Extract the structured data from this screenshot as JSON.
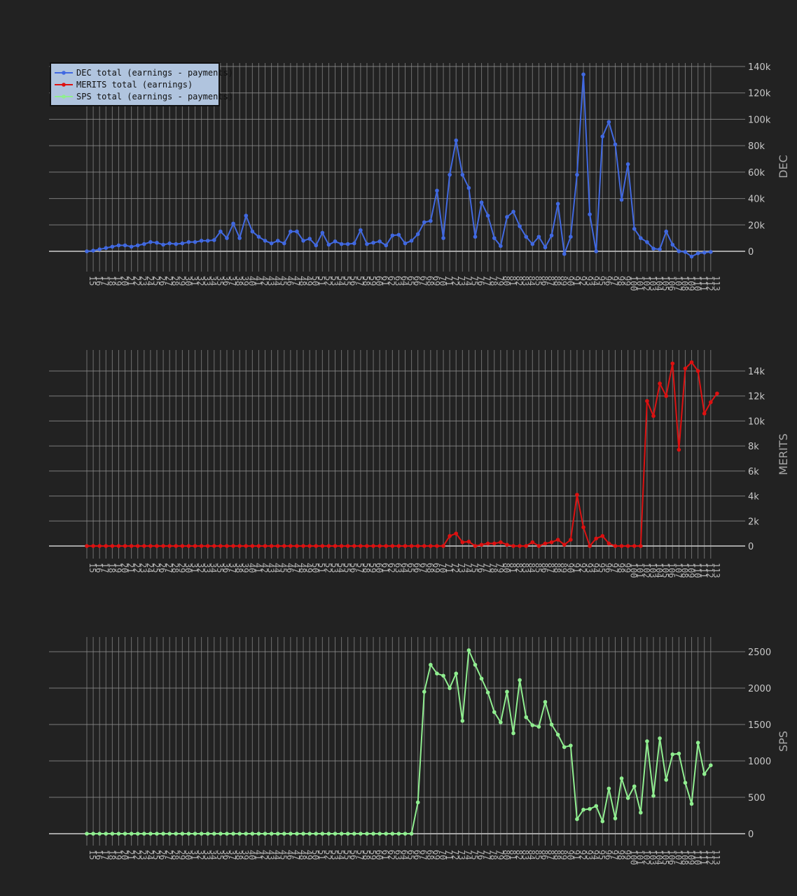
{
  "chart_data": [
    {
      "type": "line",
      "series": [
        {
          "name": "DEC total (earnings - payments)",
          "color": "#4169e1"
        }
      ],
      "ylabel": "DEC",
      "ylim": [
        -10000,
        142000
      ],
      "yticks": [
        0,
        20000,
        40000,
        60000,
        80000,
        100000,
        120000,
        140000
      ],
      "ytick_labels": [
        "0",
        "20k",
        "40k",
        "60k",
        "80k",
        "100k",
        "120k",
        "140k"
      ],
      "x_labels": [
        "15",
        "16",
        "17",
        "18",
        "19",
        "20",
        "21",
        "22",
        "23",
        "24",
        "25",
        "26",
        "27",
        "28",
        "29",
        "30",
        "31",
        "32",
        "33",
        "34",
        "35",
        "36",
        "37",
        "38",
        "39",
        "40",
        "41",
        "42",
        "43",
        "44",
        "45",
        "46",
        "47",
        "48",
        "49",
        "50",
        "51",
        "52",
        "53",
        "54",
        "55",
        "56",
        "57",
        "58",
        "59",
        "60",
        "61",
        "62",
        "63",
        "64",
        "65",
        "66",
        "67",
        "68",
        "69",
        "70",
        "71",
        "72",
        "73",
        "74",
        "75",
        "76",
        "77",
        "78",
        "79",
        "80",
        "81",
        "82",
        "83",
        "84",
        "85",
        "86",
        "87",
        "88",
        "89",
        "90",
        "91",
        "92",
        "93",
        "94",
        "95",
        "96",
        "97",
        "98",
        "99",
        "100",
        "101",
        "102",
        "103",
        "104",
        "105",
        "106",
        "107",
        "108",
        "109",
        "110",
        "111",
        "112",
        "113"
      ],
      "values": [
        0,
        500,
        1500,
        2500,
        3500,
        4500,
        4500,
        3500,
        4500,
        5500,
        7000,
        6500,
        5000,
        6000,
        5500,
        6000,
        7000,
        7000,
        8000,
        8000,
        8500,
        15000,
        10000,
        21000,
        10000,
        27000,
        15000,
        11000,
        8000,
        6000,
        8000,
        6000,
        15000,
        15000,
        8000,
        9500,
        4500,
        14000,
        5000,
        7500,
        5500,
        5500,
        6000,
        16000,
        5500,
        6500,
        7500,
        4500,
        12000,
        12500,
        6000,
        8000,
        13000,
        22000,
        23000,
        46000,
        10000,
        58000,
        84000,
        58000,
        48000,
        11000,
        37000,
        27000,
        10000,
        4000,
        26000,
        30000,
        19000,
        11000,
        5500,
        11000,
        3000,
        12000,
        36000,
        -2000,
        11000,
        58000,
        134000,
        28000,
        0,
        87000,
        98000,
        81000,
        39000,
        66000,
        17000,
        10000,
        7000,
        2000,
        1500,
        15000,
        5000,
        0,
        -500,
        -4000,
        -1500,
        -1000,
        -500
      ],
      "grid": true,
      "legend": "top-left"
    },
    {
      "type": "line",
      "series": [
        {
          "name": "MERITS  total (earnings)",
          "color": "#dd1111"
        }
      ],
      "ylabel": "MERITS",
      "ylim": [
        -1000,
        16000
      ],
      "yticks": [
        0,
        2000,
        4000,
        6000,
        8000,
        10000,
        12000,
        14000
      ],
      "ytick_labels": [
        "0",
        "2k",
        "4k",
        "6k",
        "8k",
        "10k",
        "12k",
        "14k"
      ],
      "x_labels": [
        "15",
        "16",
        "17",
        "18",
        "19",
        "20",
        "21",
        "22",
        "23",
        "24",
        "25",
        "26",
        "27",
        "28",
        "29",
        "30",
        "31",
        "32",
        "33",
        "34",
        "35",
        "36",
        "37",
        "38",
        "39",
        "40",
        "41",
        "42",
        "43",
        "44",
        "45",
        "46",
        "47",
        "48",
        "49",
        "50",
        "51",
        "52",
        "53",
        "54",
        "55",
        "56",
        "57",
        "58",
        "59",
        "60",
        "61",
        "62",
        "63",
        "64",
        "65",
        "66",
        "67",
        "68",
        "69",
        "70",
        "71",
        "72",
        "73",
        "74",
        "75",
        "76",
        "77",
        "78",
        "79",
        "80",
        "81",
        "82",
        "83",
        "84",
        "85",
        "86",
        "87",
        "88",
        "89",
        "90",
        "91",
        "92",
        "93",
        "94",
        "95",
        "96",
        "97",
        "98",
        "99",
        "100",
        "101",
        "102",
        "103",
        "104",
        "105",
        "106",
        "107",
        "108",
        "109",
        "110",
        "111",
        "112",
        "113"
      ],
      "values": [
        0,
        0,
        0,
        0,
        0,
        0,
        0,
        0,
        0,
        0,
        0,
        0,
        0,
        0,
        0,
        0,
        0,
        0,
        0,
        0,
        0,
        0,
        0,
        0,
        0,
        0,
        0,
        0,
        0,
        0,
        0,
        0,
        0,
        0,
        0,
        0,
        0,
        0,
        0,
        0,
        0,
        0,
        0,
        0,
        0,
        0,
        0,
        0,
        0,
        0,
        0,
        0,
        0,
        0,
        0,
        0,
        0,
        800,
        1000,
        300,
        350,
        0,
        100,
        200,
        200,
        300,
        100,
        0,
        0,
        0,
        300,
        0,
        200,
        300,
        500,
        100,
        500,
        4100,
        1500,
        0,
        600,
        800,
        200,
        0,
        0,
        0,
        0,
        0,
        11600,
        10400,
        13000,
        12000,
        14600,
        7700,
        14200,
        14700,
        14000,
        10600,
        11500,
        12200
      ],
      "grid": true
    },
    {
      "type": "line",
      "series": [
        {
          "name": "SPS total (earnings - payments)",
          "color": "#90ee90"
        }
      ],
      "ylabel": "SPS",
      "ylim": [
        -100,
        2700
      ],
      "yticks": [
        0,
        500,
        1000,
        1500,
        2000,
        2500
      ],
      "ytick_labels": [
        "0",
        "500",
        "1000",
        "1500",
        "2000",
        "2500"
      ],
      "x_labels": [
        "15",
        "16",
        "17",
        "18",
        "19",
        "20",
        "21",
        "22",
        "23",
        "24",
        "25",
        "26",
        "27",
        "28",
        "29",
        "30",
        "31",
        "32",
        "33",
        "34",
        "35",
        "36",
        "37",
        "38",
        "39",
        "40",
        "41",
        "42",
        "43",
        "44",
        "45",
        "46",
        "47",
        "48",
        "49",
        "50",
        "51",
        "52",
        "53",
        "54",
        "55",
        "56",
        "57",
        "58",
        "59",
        "60",
        "61",
        "62",
        "63",
        "64",
        "65",
        "66",
        "67",
        "68",
        "69",
        "70",
        "71",
        "72",
        "73",
        "74",
        "75",
        "76",
        "77",
        "78",
        "79",
        "80",
        "81",
        "82",
        "83",
        "84",
        "85",
        "86",
        "87",
        "88",
        "89",
        "90",
        "91",
        "92",
        "93",
        "94",
        "95",
        "96",
        "97",
        "98",
        "99",
        "100",
        "101",
        "102",
        "103",
        "104",
        "105",
        "106",
        "107",
        "108",
        "109",
        "110",
        "111",
        "112",
        "113"
      ],
      "values": [
        0,
        0,
        0,
        0,
        0,
        0,
        0,
        0,
        0,
        0,
        0,
        0,
        0,
        0,
        0,
        0,
        0,
        0,
        0,
        0,
        0,
        0,
        0,
        0,
        0,
        0,
        0,
        0,
        0,
        0,
        0,
        0,
        0,
        0,
        0,
        0,
        0,
        0,
        0,
        0,
        0,
        0,
        0,
        0,
        0,
        0,
        0,
        0,
        0,
        0,
        0,
        0,
        430,
        1950,
        2320,
        2200,
        2170,
        2000,
        2200,
        1550,
        2520,
        2320,
        2130,
        1940,
        1670,
        1530,
        1950,
        1380,
        2110,
        1600,
        1490,
        1470,
        1810,
        1500,
        1360,
        1190,
        1210,
        200,
        330,
        340,
        380,
        170,
        620,
        210,
        760,
        490,
        650,
        290,
        1270,
        520,
        1310,
        740,
        1090,
        1100,
        700,
        410,
        1250,
        820,
        940
      ],
      "grid": true
    }
  ]
}
